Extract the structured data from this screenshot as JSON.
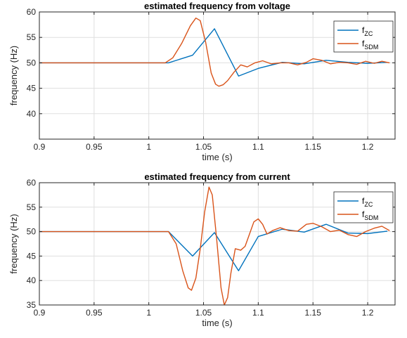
{
  "chart_data": [
    {
      "type": "line",
      "title": "estimated frequency from voltage",
      "xlabel": "time (s)",
      "ylabel": "frequency (Hz)",
      "xlim": [
        0.9,
        1.225
      ],
      "ylim": [
        35,
        60
      ],
      "xticks": [
        "0.9",
        "0.95",
        "1",
        "1.05",
        "1.1",
        "1.15",
        "1.2"
      ],
      "yticks": [
        "40",
        "45",
        "50",
        "55",
        "60"
      ],
      "grid": true,
      "legend_position": "top-right",
      "series": [
        {
          "name_base": "f",
          "name_sub": "ZC",
          "color": "#0072BD",
          "x": [
            0.9,
            1.0,
            1.018,
            1.04,
            1.06,
            1.082,
            1.1,
            1.122,
            1.142,
            1.162,
            1.182,
            1.2,
            1.218
          ],
          "y": [
            50.0,
            50.0,
            50.0,
            51.5,
            56.7,
            47.4,
            48.9,
            50.1,
            49.8,
            50.5,
            50.1,
            49.9,
            50.1
          ]
        },
        {
          "name_base": "f",
          "name_sub": "SDM",
          "color": "#D95319",
          "x": [
            0.9,
            1.0,
            1.015,
            1.022,
            1.03,
            1.038,
            1.043,
            1.047,
            1.052,
            1.057,
            1.061,
            1.064,
            1.068,
            1.072,
            1.078,
            1.084,
            1.09,
            1.097,
            1.104,
            1.112,
            1.12,
            1.128,
            1.136,
            1.144,
            1.15,
            1.158,
            1.166,
            1.174,
            1.182,
            1.19,
            1.198,
            1.206,
            1.213,
            1.22
          ],
          "y": [
            50.0,
            50.0,
            50.0,
            51.0,
            53.8,
            57.3,
            58.8,
            58.3,
            54.0,
            48.0,
            45.8,
            45.4,
            45.7,
            46.5,
            48.2,
            49.6,
            49.2,
            50.0,
            50.4,
            49.8,
            50.0,
            50.0,
            49.6,
            50.1,
            50.8,
            50.5,
            49.8,
            50.1,
            50.0,
            49.7,
            50.3,
            49.9,
            50.3,
            50.0
          ]
        }
      ]
    },
    {
      "type": "line",
      "title": "estimated frequency from current",
      "xlabel": "time (s)",
      "ylabel": "frequency (Hz)",
      "xlim": [
        0.9,
        1.225
      ],
      "ylim": [
        35,
        60
      ],
      "xticks": [
        "0.9",
        "0.95",
        "1",
        "1.05",
        "1.1",
        "1.15",
        "1.2"
      ],
      "yticks": [
        "35",
        "40",
        "45",
        "50",
        "55",
        "60"
      ],
      "grid": true,
      "legend_position": "top-right",
      "series": [
        {
          "name_base": "f",
          "name_sub": "ZC",
          "color": "#0072BD",
          "x": [
            0.9,
            1.0,
            1.018,
            1.04,
            1.06,
            1.082,
            1.1,
            1.122,
            1.142,
            1.162,
            1.182,
            1.2,
            1.218
          ],
          "y": [
            50.0,
            50.0,
            50.0,
            45.0,
            49.8,
            42.0,
            49.0,
            50.5,
            49.9,
            51.5,
            49.7,
            49.6,
            50.1
          ]
        },
        {
          "name_base": "f",
          "name_sub": "SDM",
          "color": "#D95319",
          "x": [
            0.9,
            1.0,
            1.018,
            1.025,
            1.031,
            1.036,
            1.039,
            1.043,
            1.047,
            1.051,
            1.055,
            1.058,
            1.062,
            1.066,
            1.069,
            1.072,
            1.075,
            1.079,
            1.084,
            1.088,
            1.092,
            1.096,
            1.1,
            1.104,
            1.108,
            1.113,
            1.12,
            1.128,
            1.136,
            1.144,
            1.15,
            1.158,
            1.166,
            1.174,
            1.182,
            1.19,
            1.198,
            1.206,
            1.213,
            1.22
          ],
          "y": [
            50.0,
            50.0,
            50.0,
            47.5,
            42.0,
            38.5,
            38.0,
            40.5,
            46.5,
            54.0,
            59.1,
            57.5,
            48.5,
            38.5,
            35.0,
            36.5,
            41.5,
            46.5,
            46.2,
            47.0,
            49.5,
            52.0,
            52.6,
            51.5,
            49.5,
            50.2,
            50.8,
            50.2,
            50.1,
            51.5,
            51.7,
            51.0,
            50.0,
            50.3,
            49.4,
            49.0,
            50.0,
            50.7,
            51.1,
            50.2
          ]
        }
      ]
    }
  ]
}
